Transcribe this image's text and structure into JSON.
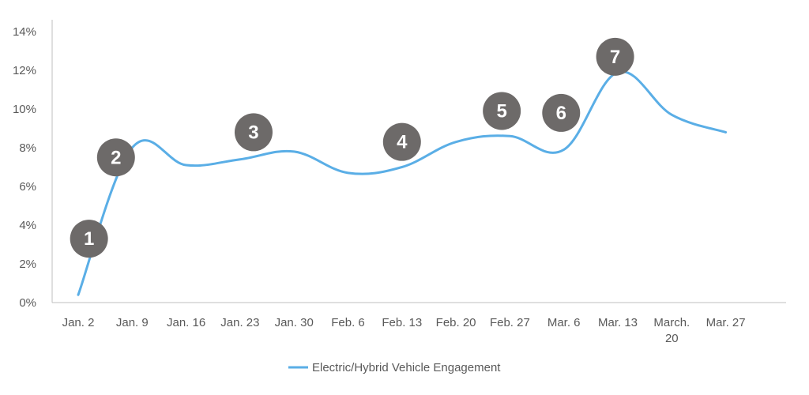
{
  "chart_data": {
    "type": "line",
    "title": "",
    "xlabel": "",
    "ylabel": "",
    "categories": [
      "Jan. 2",
      "Jan. 9",
      "Jan. 16",
      "Jan. 23",
      "Jan. 30",
      "Feb. 6",
      "Feb. 13",
      "Feb. 20",
      "Feb. 27",
      "Mar. 6",
      "Mar. 13",
      "March. 20",
      "Mar. 27"
    ],
    "series": [
      {
        "name": "Electric/Hybrid Vehicle Engagement",
        "color": "#5aaee6",
        "values": [
          0.4,
          8.0,
          7.1,
          7.4,
          7.8,
          6.7,
          7.0,
          8.3,
          8.6,
          7.9,
          11.9,
          9.7,
          8.8
        ]
      }
    ],
    "ylim": [
      0,
      14
    ],
    "yticks": [
      0,
      2,
      4,
      6,
      8,
      10,
      12,
      14
    ],
    "ytick_suffix": "%",
    "legend": "bottom",
    "annotations": [
      {
        "label": "1",
        "x_index": 0.2,
        "y": 3.3
      },
      {
        "label": "2",
        "x_index": 0.7,
        "y": 7.5
      },
      {
        "label": "3",
        "x_index": 3.25,
        "y": 8.8
      },
      {
        "label": "4",
        "x_index": 6.0,
        "y": 8.3
      },
      {
        "label": "5",
        "x_index": 7.85,
        "y": 9.9
      },
      {
        "label": "6",
        "x_index": 8.95,
        "y": 9.8
      },
      {
        "label": "7",
        "x_index": 9.95,
        "y": 12.7
      }
    ],
    "marker_color": "#6d6a69"
  }
}
